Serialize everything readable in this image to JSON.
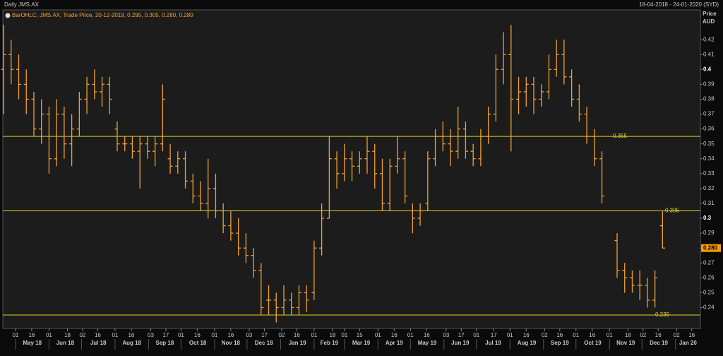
{
  "chart_data": {
    "type": "ohlc",
    "title": "Daily JMS.AX",
    "date_range": "18-04-2018 - 24-01-2020 (SYD)",
    "legend": "BarOHLC, JMS.AX, Trade Price, 20-12-2019, 0.295, 0.305, 0.280, 0.280",
    "y_axis_label": "Price",
    "y_axis_unit": "AUD",
    "color": "#f0a030",
    "level_color": "#e0d020",
    "xlim": [
      "2018-04-18",
      "2020-01-24"
    ],
    "ylim": [
      0.226,
      0.44
    ],
    "yticks": [
      0.24,
      0.25,
      0.26,
      0.27,
      0.28,
      0.29,
      0.3,
      0.31,
      0.32,
      0.33,
      0.34,
      0.35,
      0.36,
      0.37,
      0.38,
      0.39,
      0.4,
      0.41,
      0.42
    ],
    "xticks": [
      {
        "value": "2018-05-01",
        "label": "01"
      },
      {
        "value": "2018-05-16",
        "label": "16"
      },
      {
        "value": "2018-06-01",
        "label": "01"
      },
      {
        "value": "2018-06-18",
        "label": "18"
      },
      {
        "value": "2018-07-02",
        "label": "02"
      },
      {
        "value": "2018-07-16",
        "label": "16"
      },
      {
        "value": "2018-08-01",
        "label": "01"
      },
      {
        "value": "2018-08-16",
        "label": "16"
      },
      {
        "value": "2018-09-03",
        "label": "03"
      },
      {
        "value": "2018-09-17",
        "label": "17"
      },
      {
        "value": "2018-10-01",
        "label": "01"
      },
      {
        "value": "2018-10-16",
        "label": "16"
      },
      {
        "value": "2018-11-01",
        "label": "01"
      },
      {
        "value": "2018-11-16",
        "label": "16"
      },
      {
        "value": "2018-12-03",
        "label": "03"
      },
      {
        "value": "2018-12-17",
        "label": "17"
      },
      {
        "value": "2019-01-02",
        "label": "02"
      },
      {
        "value": "2019-01-16",
        "label": "16"
      },
      {
        "value": "2019-02-01",
        "label": "01"
      },
      {
        "value": "2019-02-18",
        "label": "18"
      },
      {
        "value": "2019-03-01",
        "label": "01"
      },
      {
        "value": "2019-03-15",
        "label": "15"
      },
      {
        "value": "2019-04-01",
        "label": "01"
      },
      {
        "value": "2019-04-16",
        "label": "16"
      },
      {
        "value": "2019-05-01",
        "label": "01"
      },
      {
        "value": "2019-05-16",
        "label": "16"
      },
      {
        "value": "2019-06-03",
        "label": "03"
      },
      {
        "value": "2019-06-17",
        "label": "17"
      },
      {
        "value": "2019-07-01",
        "label": "01"
      },
      {
        "value": "2019-07-17",
        "label": "17"
      },
      {
        "value": "2019-08-01",
        "label": "01"
      },
      {
        "value": "2019-08-16",
        "label": "16"
      },
      {
        "value": "2019-09-02",
        "label": "02"
      },
      {
        "value": "2019-09-16",
        "label": "16"
      },
      {
        "value": "2019-10-01",
        "label": "01"
      },
      {
        "value": "2019-10-16",
        "label": "16"
      },
      {
        "value": "2019-11-01",
        "label": "01"
      },
      {
        "value": "2019-11-18",
        "label": "18"
      },
      {
        "value": "2019-12-02",
        "label": "02"
      },
      {
        "value": "2019-12-16",
        "label": "16"
      },
      {
        "value": "2020-01-02",
        "label": "02"
      },
      {
        "value": "2020-01-16",
        "label": "16"
      }
    ],
    "month_labels": [
      {
        "value": "2018-05",
        "label": "May 18"
      },
      {
        "value": "2018-06",
        "label": "Jun 18"
      },
      {
        "value": "2018-07",
        "label": "Jul 18"
      },
      {
        "value": "2018-08",
        "label": "Aug 18"
      },
      {
        "value": "2018-09",
        "label": "Sep 18"
      },
      {
        "value": "2018-10",
        "label": "Oct 18"
      },
      {
        "value": "2018-11",
        "label": "Nov 18"
      },
      {
        "value": "2018-12",
        "label": "Dec 18"
      },
      {
        "value": "2019-01",
        "label": "Jan 19"
      },
      {
        "value": "2019-02",
        "label": "Feb 19"
      },
      {
        "value": "2019-03",
        "label": "Mar 19"
      },
      {
        "value": "2019-04",
        "label": "Apr 19"
      },
      {
        "value": "2019-05",
        "label": "May 19"
      },
      {
        "value": "2019-06",
        "label": "Jun 19"
      },
      {
        "value": "2019-07",
        "label": "Jul 19"
      },
      {
        "value": "2019-08",
        "label": "Aug 19"
      },
      {
        "value": "2019-09",
        "label": "Sep 19"
      },
      {
        "value": "2019-10",
        "label": "Oct 19"
      },
      {
        "value": "2019-11",
        "label": "Nov 19"
      },
      {
        "value": "2019-12",
        "label": "Dec 19"
      },
      {
        "value": "2020-01",
        "label": "Jan 20"
      }
    ],
    "levels": [
      {
        "value": 0.355,
        "label": "0.355"
      },
      {
        "value": 0.305,
        "label": "0.305"
      },
      {
        "value": 0.235,
        "label": "0.235"
      }
    ],
    "last_price": {
      "value": 0.28,
      "label": "0.280"
    },
    "x": [
      "2018-04-20",
      "2018-04-27",
      "2018-05-04",
      "2018-05-11",
      "2018-05-18",
      "2018-05-25",
      "2018-06-01",
      "2018-06-08",
      "2018-06-15",
      "2018-06-22",
      "2018-06-29",
      "2018-07-06",
      "2018-07-13",
      "2018-07-20",
      "2018-07-27",
      "2018-08-03",
      "2018-08-10",
      "2018-08-17",
      "2018-08-24",
      "2018-08-31",
      "2018-09-07",
      "2018-09-14",
      "2018-09-21",
      "2018-09-28",
      "2018-10-05",
      "2018-10-12",
      "2018-10-19",
      "2018-10-26",
      "2018-11-02",
      "2018-11-09",
      "2018-11-16",
      "2018-11-23",
      "2018-11-30",
      "2018-12-07",
      "2018-12-14",
      "2018-12-21",
      "2018-12-28",
      "2019-01-04",
      "2019-01-11",
      "2019-01-18",
      "2019-01-25",
      "2019-02-01",
      "2019-02-08",
      "2019-02-15",
      "2019-02-22",
      "2019-03-01",
      "2019-03-08",
      "2019-03-15",
      "2019-03-22",
      "2019-03-29",
      "2019-04-05",
      "2019-04-12",
      "2019-04-19",
      "2019-04-26",
      "2019-05-03",
      "2019-05-10",
      "2019-05-17",
      "2019-05-24",
      "2019-05-31",
      "2019-06-07",
      "2019-06-14",
      "2019-06-21",
      "2019-06-28",
      "2019-07-05",
      "2019-07-12",
      "2019-07-19",
      "2019-07-26",
      "2019-08-02",
      "2019-08-09",
      "2019-08-16",
      "2019-08-23",
      "2019-08-30",
      "2019-09-06",
      "2019-09-13",
      "2019-09-20",
      "2019-09-27",
      "2019-10-04",
      "2019-10-11",
      "2019-10-18",
      "2019-10-25",
      "2019-11-08",
      "2019-11-15",
      "2019-11-22",
      "2019-11-29",
      "2019-12-06",
      "2019-12-13",
      "2019-12-20"
    ],
    "open": [
      0.4,
      0.41,
      0.4,
      0.39,
      0.38,
      0.36,
      0.37,
      0.34,
      0.37,
      0.35,
      0.36,
      0.38,
      0.39,
      0.385,
      0.39,
      0.36,
      0.35,
      0.35,
      0.345,
      0.35,
      0.345,
      0.35,
      0.34,
      0.335,
      0.34,
      0.325,
      0.315,
      0.31,
      0.32,
      0.305,
      0.295,
      0.29,
      0.28,
      0.275,
      0.265,
      0.245,
      0.245,
      0.24,
      0.245,
      0.24,
      0.25,
      0.25,
      0.28,
      0.3,
      0.34,
      0.33,
      0.34,
      0.335,
      0.34,
      0.345,
      0.33,
      0.31,
      0.335,
      0.34,
      0.305,
      0.3,
      0.31,
      0.34,
      0.355,
      0.35,
      0.345,
      0.36,
      0.345,
      0.34,
      0.355,
      0.37,
      0.4,
      0.41,
      0.38,
      0.385,
      0.39,
      0.38,
      0.385,
      0.4,
      0.41,
      0.395,
      0.38,
      0.37,
      0.355,
      0.34,
      0.285,
      0.265,
      0.26,
      0.255,
      0.255,
      0.245,
      0.295
    ],
    "high": [
      0.43,
      0.42,
      0.41,
      0.4,
      0.385,
      0.38,
      0.375,
      0.38,
      0.375,
      0.37,
      0.385,
      0.395,
      0.4,
      0.395,
      0.395,
      0.365,
      0.355,
      0.355,
      0.355,
      0.355,
      0.355,
      0.39,
      0.35,
      0.345,
      0.345,
      0.33,
      0.325,
      0.34,
      0.33,
      0.31,
      0.305,
      0.3,
      0.29,
      0.28,
      0.27,
      0.255,
      0.25,
      0.255,
      0.25,
      0.255,
      0.255,
      0.285,
      0.31,
      0.355,
      0.345,
      0.35,
      0.345,
      0.345,
      0.355,
      0.35,
      0.34,
      0.34,
      0.355,
      0.345,
      0.31,
      0.31,
      0.345,
      0.36,
      0.365,
      0.36,
      0.375,
      0.365,
      0.35,
      0.36,
      0.375,
      0.41,
      0.425,
      0.43,
      0.395,
      0.395,
      0.395,
      0.39,
      0.41,
      0.42,
      0.42,
      0.4,
      0.39,
      0.375,
      0.36,
      0.345,
      0.29,
      0.27,
      0.265,
      0.265,
      0.26,
      0.265,
      0.305
    ],
    "low": [
      0.37,
      0.39,
      0.38,
      0.37,
      0.355,
      0.35,
      0.33,
      0.335,
      0.34,
      0.335,
      0.355,
      0.37,
      0.38,
      0.375,
      0.37,
      0.345,
      0.345,
      0.34,
      0.32,
      0.34,
      0.335,
      0.345,
      0.33,
      0.33,
      0.32,
      0.31,
      0.305,
      0.3,
      0.3,
      0.29,
      0.285,
      0.275,
      0.27,
      0.26,
      0.235,
      0.235,
      0.23,
      0.235,
      0.235,
      0.235,
      0.237,
      0.245,
      0.275,
      0.3,
      0.32,
      0.325,
      0.325,
      0.33,
      0.33,
      0.32,
      0.305,
      0.305,
      0.33,
      0.31,
      0.29,
      0.295,
      0.305,
      0.335,
      0.345,
      0.335,
      0.34,
      0.34,
      0.335,
      0.335,
      0.35,
      0.365,
      0.39,
      0.345,
      0.37,
      0.375,
      0.37,
      0.375,
      0.38,
      0.395,
      0.39,
      0.375,
      0.365,
      0.35,
      0.335,
      0.31,
      0.26,
      0.25,
      0.25,
      0.245,
      0.24,
      0.24,
      0.28
    ],
    "close": [
      0.41,
      0.4,
      0.39,
      0.38,
      0.36,
      0.37,
      0.34,
      0.37,
      0.35,
      0.36,
      0.38,
      0.39,
      0.385,
      0.39,
      0.38,
      0.35,
      0.35,
      0.345,
      0.35,
      0.345,
      0.35,
      0.38,
      0.335,
      0.34,
      0.325,
      0.315,
      0.31,
      0.32,
      0.305,
      0.295,
      0.29,
      0.28,
      0.275,
      0.265,
      0.24,
      0.245,
      0.24,
      0.245,
      0.24,
      0.25,
      0.245,
      0.28,
      0.3,
      0.34,
      0.33,
      0.34,
      0.335,
      0.34,
      0.345,
      0.33,
      0.31,
      0.335,
      0.34,
      0.315,
      0.3,
      0.305,
      0.34,
      0.355,
      0.35,
      0.345,
      0.36,
      0.345,
      0.34,
      0.355,
      0.37,
      0.4,
      0.41,
      0.38,
      0.385,
      0.39,
      0.38,
      0.385,
      0.4,
      0.41,
      0.395,
      0.38,
      0.37,
      0.355,
      0.34,
      0.315,
      0.265,
      0.26,
      0.255,
      0.255,
      0.245,
      0.26,
      0.28
    ]
  }
}
